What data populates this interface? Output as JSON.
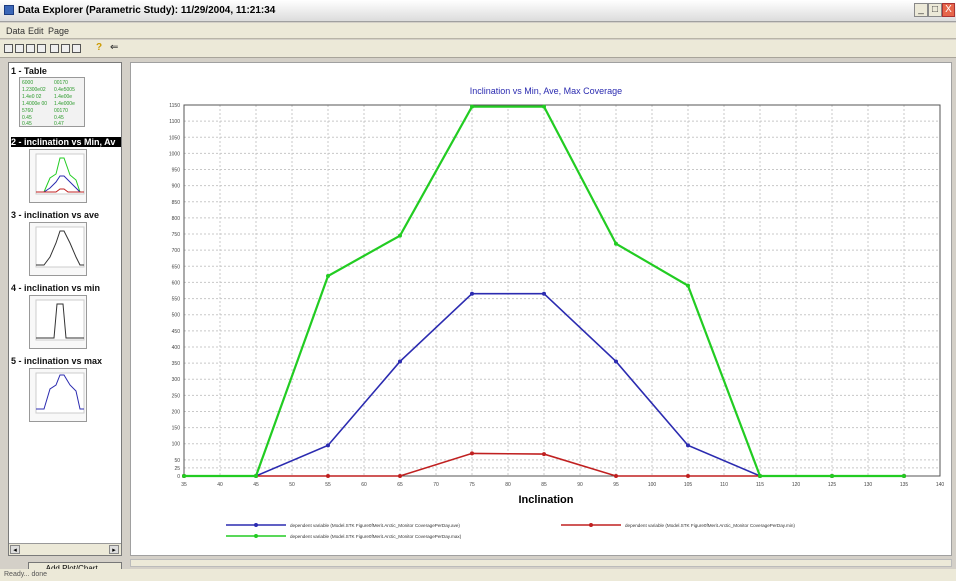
{
  "window": {
    "title": "Data Explorer (Parametric Study): 11/29/2004, 11:21:34",
    "buttons": {
      "minimize": "_",
      "maximize": "□",
      "close": "X"
    }
  },
  "menu": [
    "Data",
    "Edit",
    "Page"
  ],
  "toolbar": {
    "icons": [
      "save-icon",
      "print-icon",
      "copy-icon",
      "export-icon",
      "zoom-icon",
      "chart-icon",
      "settings-icon",
      "help-icon",
      "arrow-icon"
    ],
    "help": "?",
    "arrow": "⇐"
  },
  "sidebar": {
    "items": [
      {
        "label": "1 - Table",
        "selected": false
      },
      {
        "label": "2 - inclination vs Min, Av",
        "selected": true
      },
      {
        "label": "3 - inclination vs ave",
        "selected": false
      },
      {
        "label": "4 - inclination vs min",
        "selected": false
      },
      {
        "label": "5 - inclination vs max",
        "selected": false
      }
    ],
    "table_cells": [
      "6000",
      "00170",
      "1.2300e02",
      "0.4e5005",
      "1.4e0 02",
      "1.4e00e",
      "1.4000e 00",
      "1.4e000e",
      "5760",
      "00170",
      "0.45",
      "0.45",
      "0.45",
      "0.47"
    ],
    "add_button": "Add Plot/Chart...",
    "scroll_left": "◂",
    "scroll_right": "▸"
  },
  "status": "Ready... done",
  "chart_data": {
    "type": "line",
    "title": "Inclination vs Min, Ave, Max Coverage",
    "xlabel": "Inclination",
    "ylabel": "",
    "xlim": [
      35,
      140
    ],
    "ylim": [
      0,
      1150
    ],
    "x_ticks": [
      35,
      40,
      45,
      50,
      55,
      60,
      65,
      70,
      75,
      80,
      85,
      90,
      95,
      100,
      105,
      110,
      115,
      120,
      125,
      130,
      135,
      140
    ],
    "y_ticks": [
      0,
      25,
      50,
      100,
      150,
      200,
      250,
      300,
      350,
      400,
      450,
      500,
      550,
      600,
      650,
      700,
      750,
      800,
      850,
      900,
      950,
      1000,
      1050,
      1100,
      1150
    ],
    "x": [
      35,
      45,
      55,
      65,
      75,
      85,
      95,
      105,
      115,
      125,
      135
    ],
    "grid": true,
    "legend_position": "bottom",
    "series": [
      {
        "name": "dependent variable (Model.STK Figure0fMerit.Arctic_Monitor CoveragePerDay.ave)",
        "color": "#2b2bb0",
        "values": [
          0,
          0,
          95,
          355,
          565,
          565,
          355,
          95,
          0,
          0,
          0
        ]
      },
      {
        "name": "dependent variable (Model.STK Figure0fMerit.Arctic_Monitor CoveragePerDay.min)",
        "color": "#c02020",
        "values": [
          0,
          0,
          0,
          0,
          70,
          68,
          0,
          0,
          0,
          0,
          0
        ]
      },
      {
        "name": "dependent variable (Model.STK Figure0fMerit.Arctic_Monitor CoveragePerDay.max)",
        "color": "#22cc22",
        "values": [
          0,
          0,
          620,
          745,
          1145,
          1145,
          720,
          590,
          0,
          0,
          0
        ]
      }
    ]
  }
}
